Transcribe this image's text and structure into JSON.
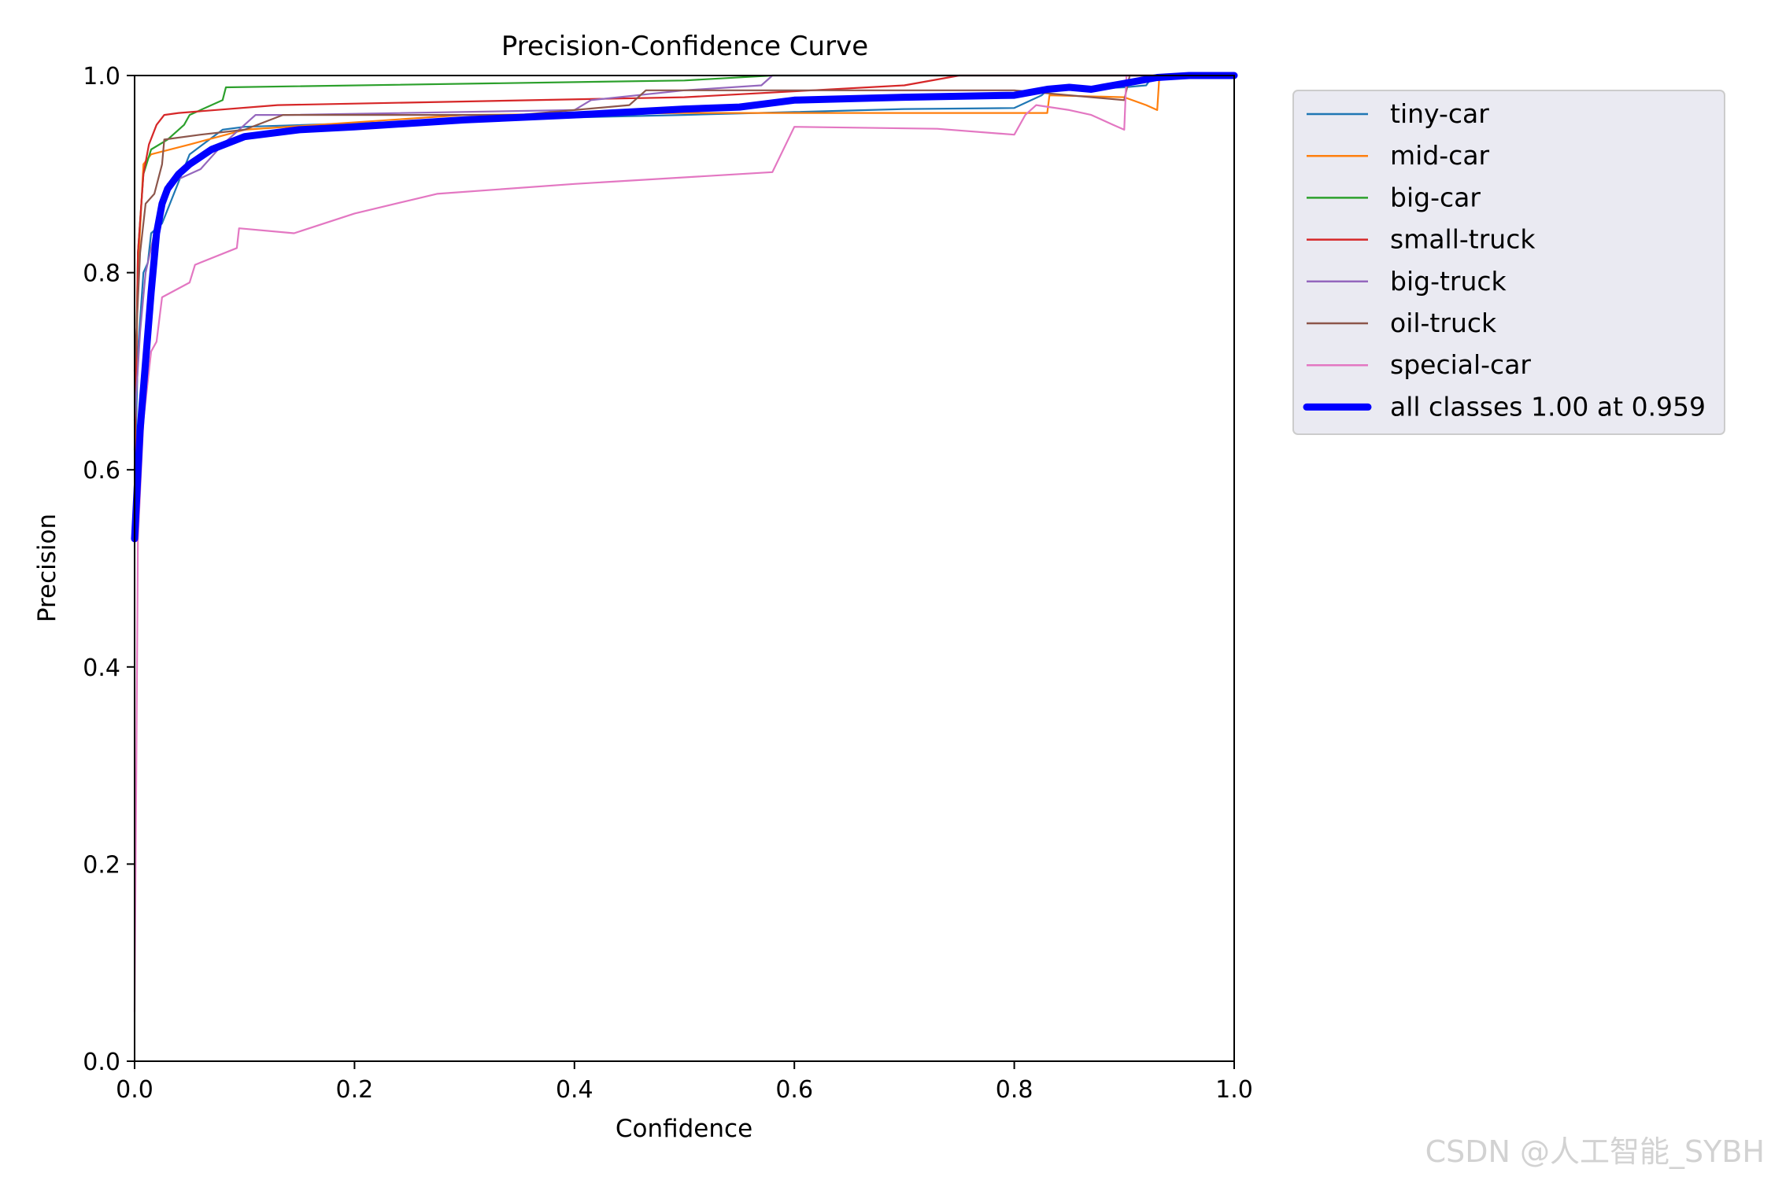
{
  "chart_data": {
    "type": "line",
    "title": "Precision-Confidence Curve",
    "xlabel": "Confidence",
    "ylabel": "Precision",
    "xlim": [
      0,
      1
    ],
    "ylim": [
      0,
      1
    ],
    "xticks": [
      "0.0",
      "0.2",
      "0.4",
      "0.6",
      "0.8",
      "1.0"
    ],
    "yticks": [
      "0.0",
      "0.2",
      "0.4",
      "0.6",
      "0.8",
      "1.0"
    ],
    "grid": false,
    "legend_position": "outside-right",
    "series": [
      {
        "name": "tiny-car",
        "color": "#1f77b4",
        "x": [
          0.0,
          0.003,
          0.008,
          0.012,
          0.015,
          0.025,
          0.05,
          0.08,
          0.1,
          0.3,
          0.5,
          0.6,
          0.7,
          0.8,
          0.825,
          0.83,
          0.9,
          0.92,
          0.925,
          0.95,
          1.0
        ],
        "y": [
          0.58,
          0.72,
          0.8,
          0.81,
          0.84,
          0.85,
          0.92,
          0.945,
          0.948,
          0.955,
          0.96,
          0.963,
          0.966,
          0.967,
          0.98,
          0.985,
          0.988,
          0.99,
          0.998,
          1.0,
          1.0
        ]
      },
      {
        "name": "mid-car",
        "color": "#ff7f0e",
        "x": [
          0.0,
          0.003,
          0.008,
          0.015,
          0.05,
          0.1,
          0.3,
          0.5,
          0.6,
          0.83,
          0.832,
          0.9,
          0.92,
          0.93,
          0.932,
          0.95,
          1.0
        ],
        "y": [
          0.6,
          0.8,
          0.91,
          0.92,
          0.93,
          0.945,
          0.96,
          0.962,
          0.962,
          0.962,
          0.98,
          0.978,
          0.97,
          0.965,
          1.0,
          1.0,
          1.0
        ]
      },
      {
        "name": "big-car",
        "color": "#2ca02c",
        "x": [
          0.0,
          0.003,
          0.008,
          0.015,
          0.03,
          0.045,
          0.05,
          0.08,
          0.083,
          0.5,
          0.58,
          1.0
        ],
        "y": [
          0.62,
          0.82,
          0.9,
          0.925,
          0.935,
          0.95,
          0.96,
          0.975,
          0.988,
          0.995,
          1.0,
          1.0
        ]
      },
      {
        "name": "small-truck",
        "color": "#d62728",
        "x": [
          0.0,
          0.003,
          0.008,
          0.013,
          0.02,
          0.027,
          0.04,
          0.13,
          0.5,
          0.7,
          0.75,
          1.0
        ],
        "y": [
          0.6,
          0.82,
          0.9,
          0.93,
          0.95,
          0.96,
          0.962,
          0.97,
          0.978,
          0.99,
          1.0,
          1.0
        ]
      },
      {
        "name": "big-truck",
        "color": "#9467bd",
        "x": [
          0.0,
          0.005,
          0.01,
          0.02,
          0.03,
          0.04,
          0.06,
          0.08,
          0.11,
          0.14,
          0.4,
          0.415,
          0.5,
          0.57,
          0.58,
          1.0
        ],
        "y": [
          0.65,
          0.74,
          0.8,
          0.85,
          0.89,
          0.895,
          0.905,
          0.93,
          0.96,
          0.96,
          0.965,
          0.975,
          0.985,
          0.99,
          1.0,
          1.0
        ]
      },
      {
        "name": "oil-truck",
        "color": "#8c564b",
        "x": [
          0.0,
          0.005,
          0.01,
          0.018,
          0.025,
          0.027,
          0.06,
          0.1,
          0.135,
          0.35,
          0.45,
          0.465,
          0.8,
          0.9,
          0.905,
          0.95,
          1.0
        ],
        "y": [
          0.7,
          0.82,
          0.87,
          0.88,
          0.91,
          0.935,
          0.94,
          0.945,
          0.96,
          0.96,
          0.97,
          0.985,
          0.985,
          0.975,
          1.0,
          1.0,
          1.0
        ]
      },
      {
        "name": "special-car",
        "color": "#e377c2",
        "x": [
          0.0,
          0.003,
          0.008,
          0.015,
          0.02,
          0.025,
          0.05,
          0.055,
          0.093,
          0.095,
          0.145,
          0.2,
          0.275,
          0.4,
          0.58,
          0.6,
          0.73,
          0.8,
          0.81,
          0.82,
          0.85,
          0.87,
          0.89,
          0.9,
          0.902,
          0.91,
          0.95,
          1.0
        ],
        "y": [
          0.05,
          0.53,
          0.65,
          0.72,
          0.73,
          0.775,
          0.79,
          0.808,
          0.825,
          0.845,
          0.84,
          0.86,
          0.88,
          0.89,
          0.902,
          0.948,
          0.946,
          0.94,
          0.96,
          0.97,
          0.965,
          0.96,
          0.95,
          0.945,
          1.0,
          1.0,
          1.0,
          1.0
        ]
      },
      {
        "name": "all classes 1.00 at 0.959",
        "color": "#0000ff",
        "bold": true,
        "x": [
          0.0,
          0.005,
          0.01,
          0.015,
          0.02,
          0.025,
          0.03,
          0.04,
          0.05,
          0.07,
          0.1,
          0.15,
          0.2,
          0.3,
          0.4,
          0.45,
          0.5,
          0.55,
          0.6,
          0.7,
          0.8,
          0.83,
          0.85,
          0.87,
          0.9,
          0.93,
          0.959,
          1.0
        ],
        "y": [
          0.53,
          0.64,
          0.71,
          0.78,
          0.84,
          0.87,
          0.885,
          0.9,
          0.91,
          0.925,
          0.938,
          0.945,
          0.948,
          0.955,
          0.96,
          0.963,
          0.966,
          0.968,
          0.975,
          0.978,
          0.98,
          0.986,
          0.988,
          0.986,
          0.992,
          0.998,
          1.0,
          1.0
        ]
      }
    ]
  },
  "watermark": "CSDN @人工智能_SYBH"
}
